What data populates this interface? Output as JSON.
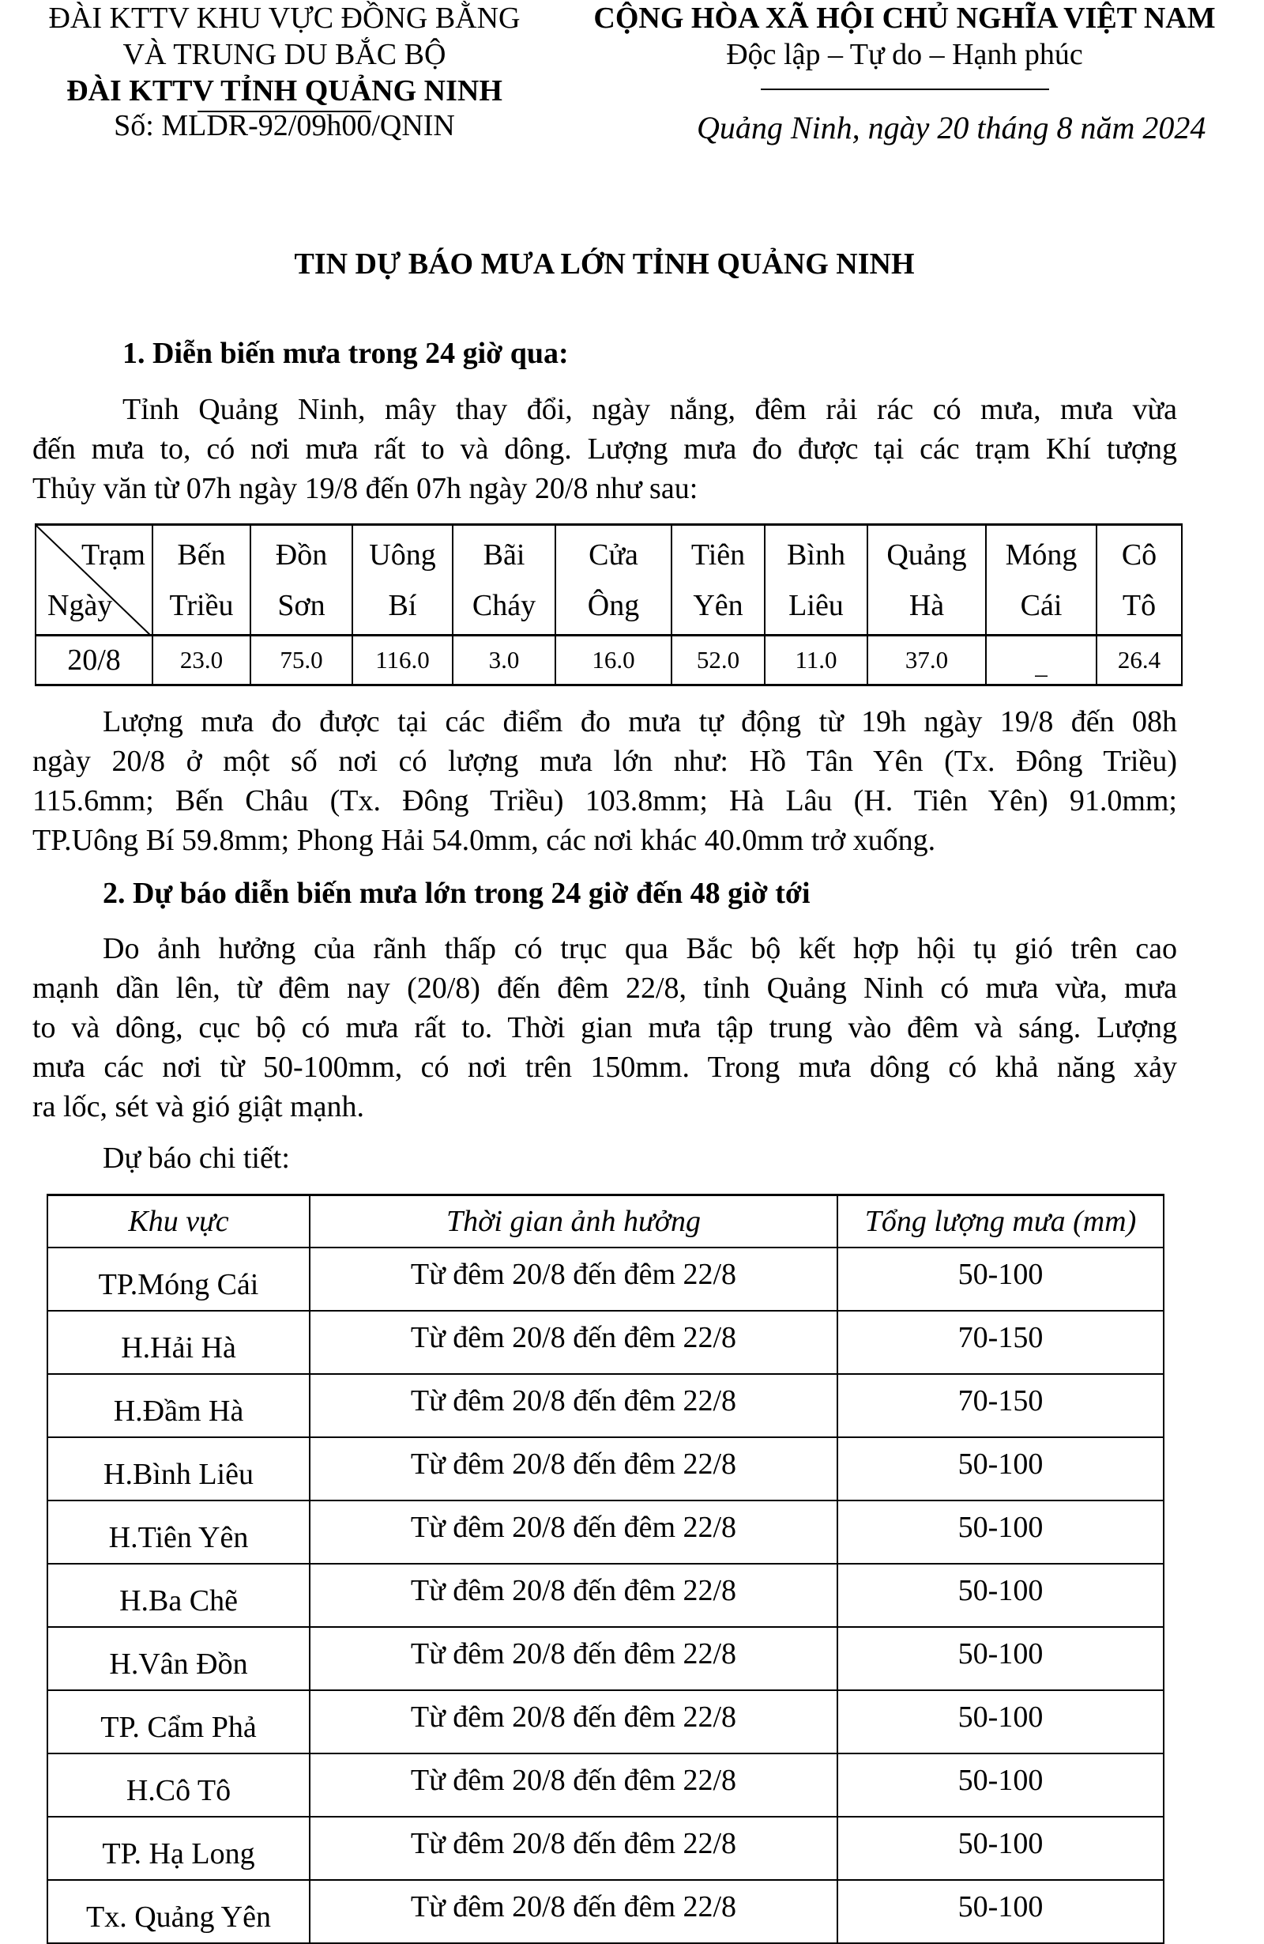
{
  "header": {
    "agency_line1": "ĐÀI KTTV KHU VỰC ĐỒNG BẰNG",
    "agency_line2": "VÀ TRUNG DU BẮC BỘ",
    "agency_line3": "ĐÀI KTTV TỈNH QUẢNG NINH",
    "doc_number": "Số: MLDR-92/09h00/QNIN",
    "nation": "CỘNG HÒA XÃ HỘI CHỦ NGHĨA VIỆT NAM",
    "motto": "Độc lập – Tự do – Hạnh phúc",
    "place_date": "Quảng Ninh, ngày 20 tháng 8 năm 2024"
  },
  "title": "TIN DỰ BÁO MƯA LỚN TỈNH QUẢNG NINH",
  "section1": {
    "heading": "1. Diễn biến mưa trong 24 giờ qua:",
    "para1": [
      "Tỉnh Quảng Ninh, mây thay đổi, ngày nắng, đêm rải rác có mưa, mưa vừa",
      "đến mưa to, có nơi mưa rất to và dông. Lượng mưa đo được tại các trạm Khí tượng",
      "Thủy văn từ 07h ngày 19/8 đến 07h ngày 20/8 như sau:"
    ],
    "table": {
      "corner_top": "Trạm",
      "corner_bottom": "Ngày",
      "stations": [
        [
          "Bến",
          "Triều"
        ],
        [
          "Đồn",
          "Sơn"
        ],
        [
          "Uông",
          "Bí"
        ],
        [
          "Bãi",
          "Cháy"
        ],
        [
          "Cửa",
          "Ông"
        ],
        [
          "Tiên",
          "Yên"
        ],
        [
          "Bình",
          "Liêu"
        ],
        [
          "Quảng",
          "Hà"
        ],
        [
          "Móng",
          "Cái"
        ],
        [
          "Cô",
          "Tô"
        ]
      ],
      "date": "20/8",
      "values": [
        "23.0",
        "75.0",
        "116.0",
        "3.0",
        "16.0",
        "52.0",
        "11.0",
        "37.0",
        "_",
        "26.4"
      ]
    },
    "para2": [
      "Lượng mưa đo được tại các điểm đo mưa tự động từ 19h ngày 19/8 đến 08h",
      "ngày 20/8 ở một số nơi có lượng mưa lớn như: Hồ Tân Yên (Tx. Đông Triều)",
      "115.6mm; Bến Châu (Tx. Đông Triều) 103.8mm; Hà Lâu (H. Tiên Yên) 91.0mm;",
      "TP.Uông Bí 59.8mm; Phong Hải 54.0mm, các nơi khác 40.0mm trở xuống."
    ]
  },
  "section2": {
    "heading": "2. Dự báo diễn biến mưa lớn trong 24 giờ đến 48 giờ tới",
    "para": [
      "Do ảnh hưởng của rãnh thấp có trục qua Bắc bộ kết hợp hội tụ gió trên cao",
      "mạnh dần lên, từ đêm nay (20/8) đến đêm 22/8, tỉnh Quảng Ninh có mưa vừa, mưa",
      "to và dông, cục bộ có mưa rất to. Thời gian mưa tập trung vào đêm và sáng. Lượng",
      "mưa các nơi từ 50-100mm, có nơi trên 150mm. Trong mưa dông có khả năng xảy",
      "ra lốc, sét và gió giật mạnh."
    ],
    "detail_label": "Dự báo chi tiết:",
    "table": {
      "headers": [
        "Khu vực",
        "Thời gian ảnh hưởng",
        "Tổng lượng mưa (mm)"
      ],
      "rows": [
        [
          "TP.Móng Cái",
          "Từ đêm 20/8 đến đêm 22/8",
          "50-100"
        ],
        [
          "H.Hải Hà",
          "Từ đêm 20/8 đến đêm 22/8",
          "70-150"
        ],
        [
          "H.Đầm Hà",
          "Từ đêm 20/8 đến đêm 22/8",
          "70-150"
        ],
        [
          "H.Bình Liêu",
          "Từ đêm 20/8 đến đêm 22/8",
          "50-100"
        ],
        [
          "H.Tiên Yên",
          "Từ đêm 20/8 đến đêm 22/8",
          "50-100"
        ],
        [
          "H.Ba Chẽ",
          "Từ đêm 20/8 đến đêm 22/8",
          "50-100"
        ],
        [
          "H.Vân Đồn",
          "Từ đêm 20/8 đến đêm 22/8",
          "50-100"
        ],
        [
          "TP. Cẩm Phả",
          "Từ đêm 20/8 đến đêm 22/8",
          "50-100"
        ],
        [
          "H.Cô Tô",
          "Từ đêm 20/8 đến đêm 22/8",
          "50-100"
        ],
        [
          "TP. Hạ Long",
          "Từ đêm 20/8 đến đêm 22/8",
          "50-100"
        ],
        [
          "Tx. Quảng Yên",
          "Từ đêm 20/8 đến đêm 22/8",
          "50-100"
        ]
      ]
    }
  }
}
